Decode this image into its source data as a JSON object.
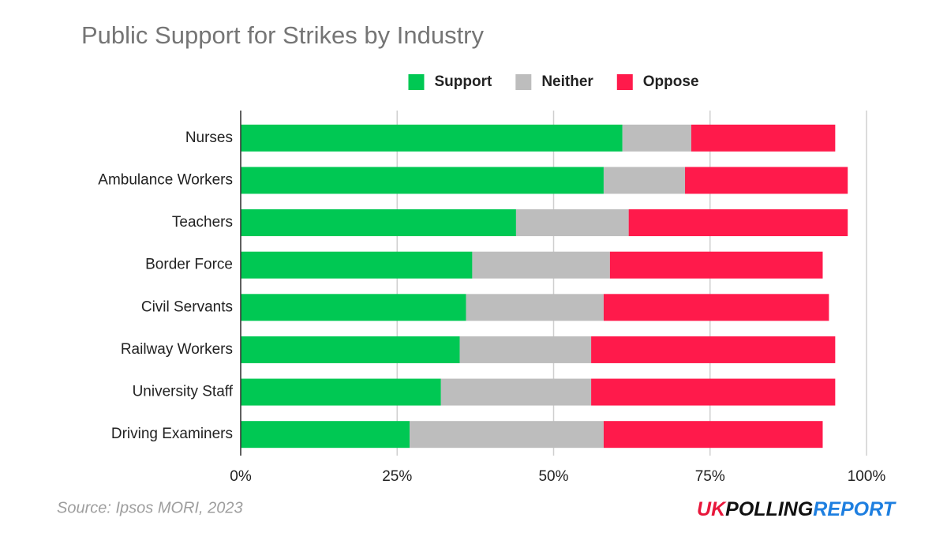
{
  "chart_data": {
    "type": "stacked-bar-horizontal",
    "title": "Public Support for Strikes by Industry",
    "categories": [
      "Nurses",
      "Ambulance Workers",
      "Teachers",
      "Border Force",
      "Civil Servants",
      "Railway Workers",
      "University Staff",
      "Driving Examiners"
    ],
    "series": [
      {
        "name": "Support",
        "color": "#00c853",
        "values": [
          61,
          58,
          44,
          37,
          36,
          35,
          32,
          27
        ]
      },
      {
        "name": "Neither",
        "color": "#bdbdbd",
        "values": [
          11,
          13,
          18,
          22,
          22,
          21,
          24,
          31
        ]
      },
      {
        "name": "Oppose",
        "color": "#ff1a4b",
        "values": [
          23,
          26,
          35,
          34,
          36,
          39,
          39,
          35
        ]
      }
    ],
    "xlim": [
      0,
      100
    ],
    "xticks": [
      {
        "value": 0,
        "label": "0%"
      },
      {
        "value": 25,
        "label": "25%"
      },
      {
        "value": 50,
        "label": "50%"
      },
      {
        "value": 75,
        "label": "75%"
      },
      {
        "value": 100,
        "label": "100%"
      }
    ],
    "grid": true,
    "legend": "top",
    "source": "Source: Ipsos MORI, 2023"
  },
  "logo": {
    "part1": "UK",
    "part2": "POLLING",
    "part3": "REPORT"
  }
}
